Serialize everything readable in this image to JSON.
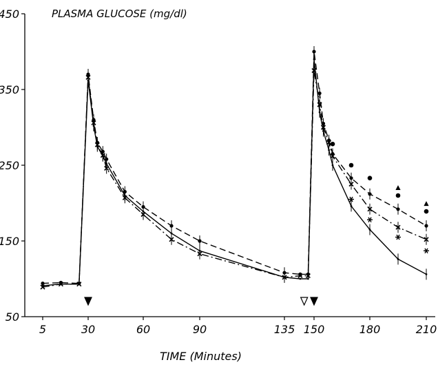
{
  "chart_data": {
    "type": "line",
    "title": "PLASMA GLUCOSE (mg/dl)",
    "xlabel": "TIME (Minutes)",
    "ylabel": "",
    "x_ticks": [
      5,
      30,
      60,
      90,
      135,
      150,
      180,
      210
    ],
    "y_ticks": [
      50,
      150,
      250,
      350,
      450
    ],
    "xlim": [
      0,
      212
    ],
    "ylim": [
      50,
      450
    ],
    "grid": false,
    "x_breaks": [
      {
        "x": 90,
        "next": 135
      },
      {
        "x": 135,
        "next": 150
      }
    ],
    "series": [
      {
        "style": "solid",
        "x": [
          5,
          15,
          25,
          30,
          33,
          35,
          38,
          40,
          50,
          60,
          75,
          90,
          135,
          143,
          147,
          150,
          153,
          155,
          158,
          160,
          170,
          180,
          195,
          210
        ],
        "values": [
          91,
          93,
          93,
          362,
          302,
          275,
          262,
          252,
          210,
          189,
          160,
          137,
          102,
          100,
          100,
          390,
          320,
          295,
          270,
          250,
          196,
          165,
          126,
          106
        ]
      },
      {
        "style": "dashed",
        "x": [
          5,
          15,
          25,
          30,
          33,
          35,
          38,
          40,
          50,
          60,
          75,
          90,
          135,
          143,
          147,
          150,
          153,
          155,
          158,
          160,
          170,
          180,
          195,
          210
        ],
        "values": [
          94,
          95,
          94,
          370,
          310,
          280,
          268,
          258,
          215,
          195,
          170,
          150,
          108,
          106,
          106,
          400,
          345,
          305,
          283,
          265,
          233,
          212,
          192,
          170
        ]
      },
      {
        "style": "dash-dot",
        "x": [
          5,
          15,
          25,
          30,
          33,
          35,
          38,
          40,
          50,
          60,
          75,
          90,
          135,
          143,
          147,
          150,
          153,
          155,
          158,
          160,
          170,
          180,
          195,
          210
        ],
        "values": [
          89,
          93,
          93,
          366,
          306,
          277,
          263,
          246,
          207,
          185,
          152,
          133,
          102,
          104,
          104,
          375,
          330,
          300,
          280,
          262,
          225,
          192,
          168,
          152
        ]
      }
    ],
    "arrows": [
      {
        "x": 30,
        "kind": "filled"
      },
      {
        "x": 145,
        "kind": "open"
      },
      {
        "x": 150,
        "kind": "filled"
      }
    ],
    "significance_marks": [
      {
        "x": 160,
        "y": 278,
        "symbol": "dot"
      },
      {
        "x": 170,
        "y": 250,
        "symbol": "dot"
      },
      {
        "x": 170,
        "y": 205,
        "symbol": "asterisk"
      },
      {
        "x": 180,
        "y": 233,
        "symbol": "dot"
      },
      {
        "x": 180,
        "y": 178,
        "symbol": "asterisk"
      },
      {
        "x": 195,
        "y": 220,
        "symbol": "triangle"
      },
      {
        "x": 195,
        "y": 210,
        "symbol": "dot"
      },
      {
        "x": 195,
        "y": 155,
        "symbol": "asterisk"
      },
      {
        "x": 210,
        "y": 199,
        "symbol": "triangle"
      },
      {
        "x": 210,
        "y": 189,
        "symbol": "dot"
      },
      {
        "x": 210,
        "y": 137,
        "symbol": "asterisk"
      }
    ]
  }
}
